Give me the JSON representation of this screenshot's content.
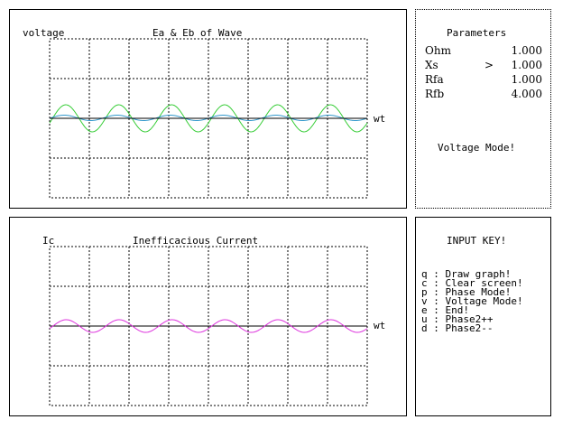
{
  "top_graph": {
    "ylabel": "voltage",
    "title": "Ea & Eb of Wave",
    "xlabel": "wt",
    "colors": {
      "ea": "#33cc33",
      "eb": "#3399cc",
      "axis": "#000000"
    }
  },
  "bottom_graph": {
    "ylabel": "Ic",
    "title": "Inefficacious Current",
    "xlabel": "wt",
    "colors": {
      "ic": "#dd33dd",
      "axis": "#000000"
    }
  },
  "parameters": {
    "title": "Parameters",
    "items": [
      {
        "name": "Ohm",
        "marker": "",
        "value": "1.000"
      },
      {
        "name": "Xs",
        "marker": ">",
        "value": "1.000"
      },
      {
        "name": "Rfa",
        "marker": "",
        "value": "1.000"
      },
      {
        "name": "Rfb",
        "marker": "",
        "value": "4.000"
      }
    ],
    "mode": "Voltage Mode!"
  },
  "input_key": {
    "title": "INPUT KEY!",
    "items": [
      {
        "key": "q",
        "action": "Draw graph!"
      },
      {
        "key": "c",
        "action": "Clear screen!"
      },
      {
        "key": "p",
        "action": "Phase Mode!"
      },
      {
        "key": "v",
        "action": "Voltage Mode!"
      },
      {
        "key": "e",
        "action": "End!"
      },
      {
        "key": "u",
        "action": "Phase2++"
      },
      {
        "key": "d",
        "action": "Phase2--"
      }
    ]
  }
}
